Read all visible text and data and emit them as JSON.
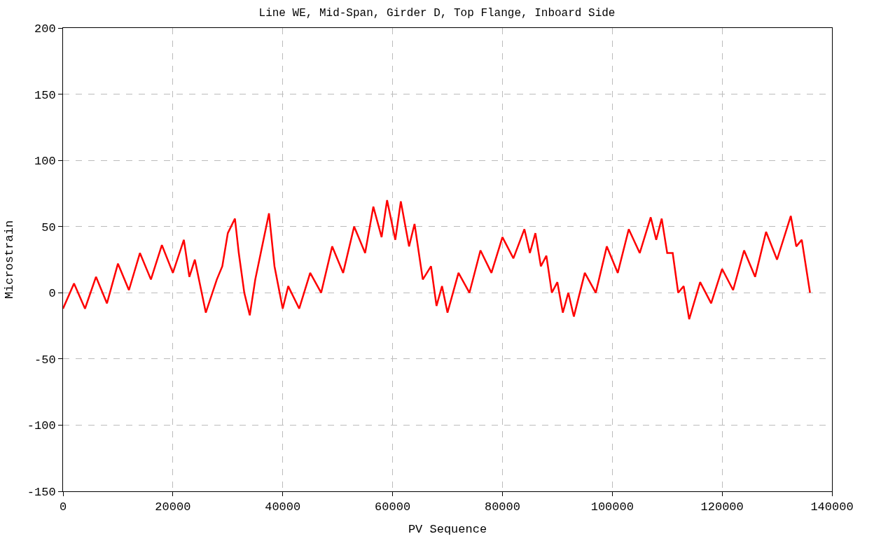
{
  "chart_data": {
    "type": "line",
    "title": "Line WE, Mid-Span, Girder D, Top Flange, Inboard Side",
    "xlabel": "PV Sequence",
    "ylabel": "Microstrain",
    "x": [
      0,
      2000,
      4000,
      6000,
      8000,
      10000,
      12000,
      14000,
      16000,
      18000,
      20000,
      22000,
      23000,
      24000,
      26000,
      28000,
      29000,
      30000,
      31300,
      32000,
      33000,
      34000,
      35000,
      36000,
      37500,
      38500,
      40000,
      41000,
      43000,
      45000,
      47000,
      49000,
      51000,
      53000,
      55000,
      56500,
      58000,
      59000,
      60500,
      61500,
      63000,
      64000,
      65500,
      67000,
      68000,
      69000,
      70000,
      72000,
      74000,
      76000,
      78000,
      80000,
      82000,
      84000,
      85000,
      86000,
      87000,
      88000,
      89000,
      90000,
      91000,
      92000,
      93000,
      95000,
      97000,
      99000,
      101000,
      103000,
      105000,
      107000,
      108000,
      109000,
      110000,
      111000,
      112000,
      113000,
      114000,
      116000,
      118000,
      120000,
      122000,
      124000,
      126000,
      128000,
      130000,
      132500,
      133500,
      134500,
      136000
    ],
    "series": [
      {
        "color": "#ff0000",
        "values": [
          -12,
          7,
          -12,
          12,
          -8,
          22,
          2,
          30,
          10,
          36,
          15,
          40,
          12,
          25,
          -15,
          10,
          20,
          45,
          56,
          30,
          0,
          -17,
          10,
          30,
          60,
          20,
          -12,
          5,
          -12,
          15,
          0,
          35,
          15,
          50,
          30,
          65,
          42,
          70,
          40,
          69,
          35,
          52,
          10,
          20,
          -10,
          5,
          -15,
          15,
          0,
          32,
          15,
          42,
          26,
          48,
          30,
          45,
          20,
          28,
          0,
          8,
          -15,
          0,
          -18,
          15,
          0,
          35,
          15,
          48,
          30,
          57,
          40,
          56,
          30,
          30,
          0,
          5,
          -20,
          8,
          -8,
          18,
          2,
          32,
          12,
          46,
          25,
          58,
          35,
          40,
          0
        ]
      }
    ],
    "xlim": [
      0,
      140000
    ],
    "xticks": [
      0,
      20000,
      40000,
      60000,
      80000,
      100000,
      120000,
      140000
    ],
    "ylim": [
      -150,
      200
    ],
    "yticks": [
      -150,
      -100,
      -50,
      0,
      50,
      100,
      150,
      200
    ],
    "grid": true,
    "line_style": "solid",
    "marker": "none"
  }
}
